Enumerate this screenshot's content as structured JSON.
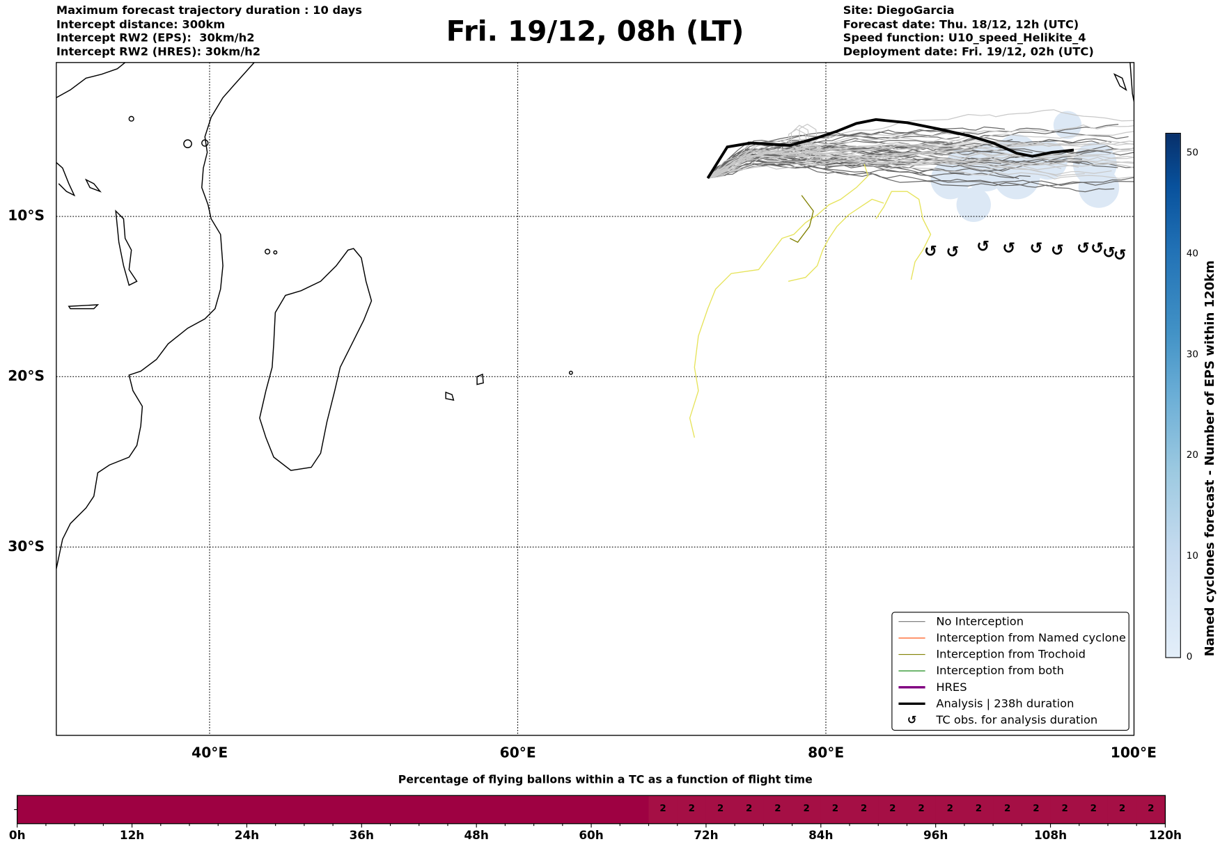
{
  "header": {
    "left": [
      "Maximum forecast trajectory duration : 10 days",
      "Intercept distance: 300km",
      "Intercept RW2 (EPS):  30km/h2",
      "Intercept RW2 (HRES): 30km/h2"
    ],
    "title": "Fri. 19/12, 08h (LT)",
    "right": [
      "Site: DiegoGarcia",
      "Forecast date: Thu. 18/12, 12h (UTC)",
      "Speed function: U10_speed_Helikite_4",
      "Deployment date: Fri. 19/12, 02h (UTC)"
    ]
  },
  "map": {
    "lon_labels": [
      "40°E",
      "60°E",
      "80°E",
      "100°E"
    ],
    "lat_labels": [
      "10°S",
      "20°S",
      "30°S"
    ],
    "lon_range": [
      30,
      100
    ],
    "lat_range": [
      0,
      -40
    ]
  },
  "legend": {
    "items": [
      {
        "label": "No Interception",
        "color": "#777777"
      },
      {
        "label": "Interception from Named cyclone",
        "color": "#ff4500"
      },
      {
        "label": "Interception from Trochoid",
        "color": "#808000"
      },
      {
        "label": "Interception from both",
        "color": "#008000"
      },
      {
        "label": "HRES",
        "color": "#800080"
      },
      {
        "label": "Analysis | 238h duration",
        "color": "#000000"
      },
      {
        "label": "TC obs. for analysis duration",
        "symbol": "↺"
      }
    ]
  },
  "colorbar": {
    "label": "Named cyclones forecast - Number of EPS within 120km",
    "ticks": [
      "0",
      "10",
      "20",
      "30",
      "40",
      "50"
    ],
    "range": [
      0,
      52
    ]
  },
  "chart_data": {
    "type": "heatmap",
    "title": "Percentage of flying ballons within a TC as a function of flight time",
    "x_ticks": [
      "0h",
      "12h",
      "24h",
      "36h",
      "48h",
      "60h",
      "72h",
      "84h",
      "96h",
      "108h",
      "120h"
    ],
    "xlim": [
      0,
      120
    ],
    "segments": [
      {
        "start_h": 0,
        "end_h": 66,
        "value": 0
      }
    ],
    "cells_start_h": 66,
    "cell_width_h": 3,
    "cell_values": [
      "2",
      "2",
      "2",
      "2",
      "2",
      "2",
      "2",
      "2",
      "2",
      "2",
      "2",
      "2",
      "2",
      "2",
      "2",
      "2",
      "2",
      "2"
    ],
    "colors": {
      "zero": "#9e0142",
      "low": "#a50f45"
    }
  }
}
